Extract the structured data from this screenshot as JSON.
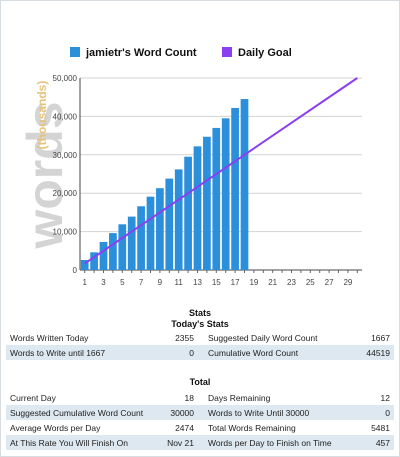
{
  "chart_data": {
    "type": "bar",
    "legend": [
      {
        "label": "jamietr's Word Count",
        "color": "#2b8fdc"
      },
      {
        "label": "Daily Goal",
        "color": "#8a3ff0"
      }
    ],
    "watermark": "words",
    "ylabel": "(thousands)",
    "ylim": [
      0,
      50000
    ],
    "yticks": [
      "0",
      "10,000",
      "20,000",
      "30,000",
      "40,000",
      "50,000"
    ],
    "xlim": [
      1,
      30
    ],
    "xticks": [
      "1",
      "3",
      "5",
      "7",
      "9",
      "11",
      "13",
      "15",
      "17",
      "19",
      "21",
      "23",
      "25",
      "27",
      "29"
    ],
    "series": [
      {
        "name": "jamietr's Word Count",
        "x": [
          1,
          2,
          3,
          4,
          5,
          6,
          7,
          8,
          9,
          10,
          11,
          12,
          13,
          14,
          15,
          16,
          17,
          18
        ],
        "values": [
          2600,
          4600,
          7300,
          9600,
          11900,
          13900,
          16600,
          19100,
          21300,
          23800,
          26200,
          29500,
          32200,
          34700,
          37000,
          39500,
          42200,
          44519
        ]
      },
      {
        "name": "Daily Goal",
        "type": "line",
        "x": [
          1,
          30
        ],
        "values": [
          1667,
          50000
        ]
      }
    ]
  },
  "stats": {
    "title": "Stats",
    "today_title": "Today's Stats",
    "today": [
      [
        "Words Written Today",
        "2355",
        "Suggested Daily Word Count",
        "1667"
      ],
      [
        "Words to Write until 1667",
        "0",
        "Cumulative Word Count",
        "44519"
      ]
    ],
    "total_title": "Total",
    "total": [
      [
        "Current Day",
        "18",
        "Days Remaining",
        "12"
      ],
      [
        "Suggested Cumulative Word Count",
        "30000",
        "Words to Write Until 30000",
        "0"
      ],
      [
        "Average Words per Day",
        "2474",
        "Total Words Remaining",
        "5481"
      ],
      [
        "At This Rate You Will Finish On",
        "Nov 21",
        "Words per Day to Finish on Time",
        "457"
      ]
    ]
  }
}
